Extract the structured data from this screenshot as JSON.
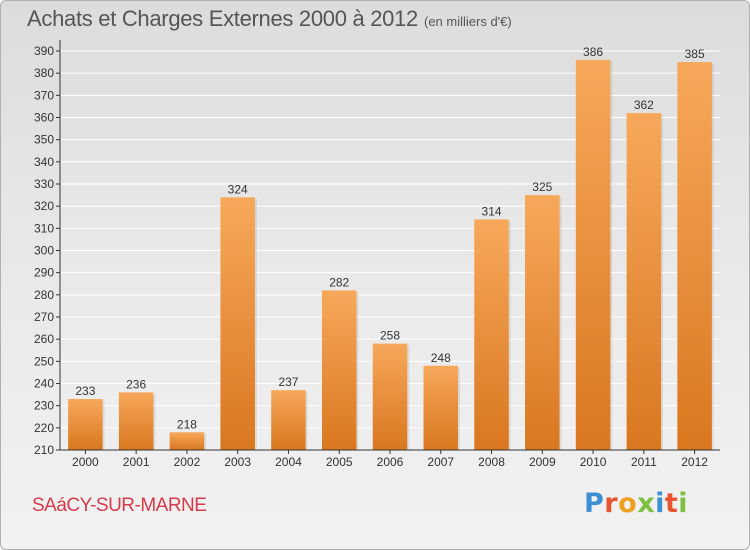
{
  "header": {
    "title": "Achats et Charges Externes 2000 à 2012",
    "unit": "(en milliers d'€)"
  },
  "footer": {
    "commune": "SAáCY-SUR-MARNE",
    "logo": {
      "letters": [
        "P",
        "r",
        "o",
        "x",
        "i",
        "t",
        "i"
      ],
      "colors": [
        "#3b8fd4",
        "#e8542f",
        "#f0a020",
        "#7cc142",
        "#3b8fd4",
        "#e8542f",
        "#7cc142"
      ]
    }
  },
  "colors": {
    "bar_light": "#f7a85a",
    "bar_dark": "#d9771f",
    "grid": "#ffffff",
    "axis": "#333333",
    "text": "#333333"
  },
  "chart_data": {
    "type": "bar",
    "categories": [
      "2000",
      "2001",
      "2002",
      "2003",
      "2004",
      "2005",
      "2006",
      "2007",
      "2008",
      "2009",
      "2010",
      "2011",
      "2012"
    ],
    "values": [
      233,
      236,
      218,
      324,
      237,
      282,
      258,
      248,
      314,
      325,
      386,
      362,
      385
    ],
    "ylim": [
      210,
      390
    ],
    "yticks": [
      210,
      220,
      230,
      240,
      250,
      260,
      270,
      280,
      290,
      300,
      310,
      320,
      330,
      340,
      350,
      360,
      370,
      380,
      390
    ],
    "grid": true,
    "data_labels": true
  }
}
